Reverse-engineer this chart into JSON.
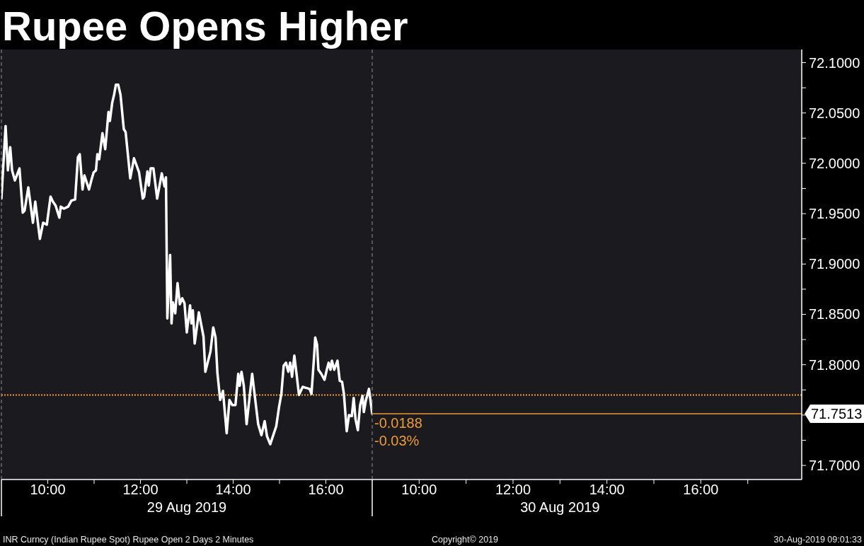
{
  "chart_data": [
    {
      "type": "line",
      "title": "Rupee Opens Higher",
      "x": [
        9.0,
        9.09,
        9.14,
        9.19,
        9.23,
        9.29,
        9.39,
        9.46,
        9.5,
        9.58,
        9.68,
        9.73,
        9.83,
        9.9,
        9.98,
        10.06,
        10.11,
        10.17,
        10.25,
        10.28,
        10.35,
        10.44,
        10.51,
        10.59,
        10.65,
        10.69,
        10.75,
        10.79,
        10.89,
        10.94,
        10.99,
        11.04,
        11.07,
        11.11,
        11.18,
        11.24,
        11.31,
        11.34,
        11.39,
        11.43,
        11.47,
        11.52,
        11.57,
        11.64,
        11.68,
        11.78,
        11.86,
        11.97,
        12.05,
        12.08,
        12.15,
        12.18,
        12.22,
        12.28,
        12.36,
        12.46,
        12.52,
        12.55,
        12.58,
        12.64,
        12.67,
        12.7,
        12.75,
        12.8,
        12.85,
        12.9,
        12.95,
        13.0,
        13.07,
        13.1,
        13.13,
        13.17,
        13.26,
        13.36,
        13.4,
        13.51,
        13.57,
        13.62,
        13.66,
        13.72,
        13.78,
        13.86,
        13.92,
        13.98,
        14.05,
        14.11,
        14.14,
        14.18,
        14.23,
        14.29,
        14.41,
        14.49,
        14.54,
        14.61,
        14.68,
        14.73,
        14.8,
        14.93,
        14.99,
        15.04,
        15.09,
        15.14,
        15.19,
        15.23,
        15.27,
        15.32,
        15.37,
        15.42,
        15.5,
        15.57,
        15.65,
        15.69,
        15.75,
        15.77,
        15.81,
        15.84,
        15.9,
        15.97,
        16.02,
        16.06,
        16.1,
        16.13,
        16.18,
        16.25,
        16.3,
        16.35,
        16.39,
        16.45,
        16.5,
        16.56,
        16.6,
        16.64,
        16.69,
        16.74,
        16.79,
        16.82,
        16.86,
        16.93,
        17.0
      ],
      "values": [
        71.965,
        72.037,
        71.993,
        72.016,
        71.993,
        71.983,
        71.995,
        71.951,
        71.953,
        71.976,
        71.941,
        71.962,
        71.925,
        71.941,
        71.939,
        71.967,
        71.962,
        71.958,
        71.946,
        71.957,
        71.955,
        71.957,
        71.963,
        71.964,
        72.006,
        72.009,
        71.974,
        71.988,
        71.974,
        71.983,
        71.991,
        71.993,
        72.009,
        72.004,
        72.03,
        72.014,
        72.051,
        72.042,
        72.06,
        72.068,
        72.078,
        72.078,
        72.068,
        72.034,
        72.031,
        71.985,
        72.005,
        71.991,
        71.965,
        71.967,
        71.992,
        71.978,
        71.995,
        71.995,
        71.965,
        71.99,
        71.977,
        71.986,
        71.846,
        71.909,
        71.841,
        71.862,
        71.851,
        71.881,
        71.86,
        71.866,
        71.861,
        71.832,
        71.859,
        71.841,
        71.854,
        71.821,
        71.852,
        71.828,
        71.793,
        71.813,
        71.837,
        71.827,
        71.792,
        71.765,
        71.774,
        71.732,
        71.765,
        71.76,
        71.76,
        71.791,
        71.779,
        71.793,
        71.779,
        71.741,
        71.791,
        71.76,
        71.741,
        71.73,
        71.744,
        71.729,
        71.721,
        71.739,
        71.758,
        71.771,
        71.799,
        71.802,
        71.793,
        71.802,
        71.788,
        71.809,
        71.79,
        71.77,
        71.778,
        71.777,
        71.776,
        71.771,
        71.811,
        71.827,
        71.82,
        71.795,
        71.791,
        71.785,
        71.795,
        71.802,
        71.795,
        71.804,
        71.795,
        71.804,
        71.784,
        71.783,
        71.771,
        71.734,
        71.75,
        71.749,
        71.767,
        71.746,
        71.735,
        71.76,
        71.769,
        71.753,
        71.764,
        71.776,
        71.7513
      ],
      "color": "#ffffff",
      "xlim": [
        9,
        17
      ],
      "xticks": [
        {
          "value": 9,
          "label": null
        },
        {
          "value": 10,
          "label": "10:00"
        },
        {
          "value": 11,
          "label": null
        },
        {
          "value": 12,
          "label": "12:00"
        },
        {
          "value": 13,
          "label": null
        },
        {
          "value": 14,
          "label": "14:00"
        },
        {
          "value": 15,
          "label": null
        },
        {
          "value": 16,
          "label": "16:00"
        }
      ],
      "xlabel": "29 Aug 2019",
      "ylim": [
        71.686,
        72.113
      ],
      "tick_labels": "x",
      "ref_lines": [
        {
          "axis": "x",
          "value": 9,
          "line_style": "dashed",
          "color": "#808080"
        },
        {
          "axis": "y",
          "value": 71.77,
          "line_style": "dotted",
          "color": "#ee9a36"
        }
      ],
      "annotations": [
        "INR Curncy (Indian Rupee Spot) Rupee Open 2 Days 2 Minutes",
        "Copyright© 2019",
        "30-Aug-2019 09:01:33"
      ]
    },
    {
      "type": "line",
      "xlim": [
        9,
        18.15
      ],
      "xticks": [
        {
          "value": 9,
          "label": null
        },
        {
          "value": 10,
          "label": "10:00"
        },
        {
          "value": 11,
          "label": null
        },
        {
          "value": 12,
          "label": "12:00"
        },
        {
          "value": 13,
          "label": null
        },
        {
          "value": 14,
          "label": "14:00"
        },
        {
          "value": 15,
          "label": null
        },
        {
          "value": 16,
          "label": "16:00"
        },
        {
          "value": 17,
          "label": null
        }
      ],
      "xlabel": "30 Aug 2019",
      "ylim": [
        71.686,
        72.113
      ],
      "yticks": [
        {
          "value": 71.7,
          "label": "71.7000"
        },
        {
          "value": 71.725,
          "label": null
        },
        {
          "value": 71.75,
          "label": null
        },
        {
          "value": 71.775,
          "label": null
        },
        {
          "value": 71.8,
          "label": "71.8000"
        },
        {
          "value": 71.825,
          "label": null
        },
        {
          "value": 71.85,
          "label": "71.8500"
        },
        {
          "value": 71.875,
          "label": null
        },
        {
          "value": 71.9,
          "label": "71.9000"
        },
        {
          "value": 71.925,
          "label": null
        },
        {
          "value": 71.95,
          "label": "71.9500"
        },
        {
          "value": 71.975,
          "label": null
        },
        {
          "value": 72.0,
          "label": "72.0000"
        },
        {
          "value": 72.025,
          "label": null
        },
        {
          "value": 72.05,
          "label": "72.0500"
        },
        {
          "value": 72.075,
          "label": null
        },
        {
          "value": 72.1,
          "label": "72.1000"
        }
      ],
      "ref_lines": [
        {
          "axis": "x",
          "value": 9,
          "line_style": "dashed",
          "color": "#808080"
        },
        {
          "axis": "y",
          "value": 71.77,
          "line_style": "dotted",
          "color": "#ee9a36"
        },
        {
          "axis": "y",
          "value": 71.7513,
          "label": "71.7513",
          "line_style": "solid",
          "color": "#ee9a36"
        }
      ],
      "annotations": [
        {
          "text": "-0.0188",
          "x": 9,
          "y": 71.7513
        },
        {
          "text": "-0.03%",
          "x": 9,
          "y": 71.7513
        }
      ]
    }
  ]
}
